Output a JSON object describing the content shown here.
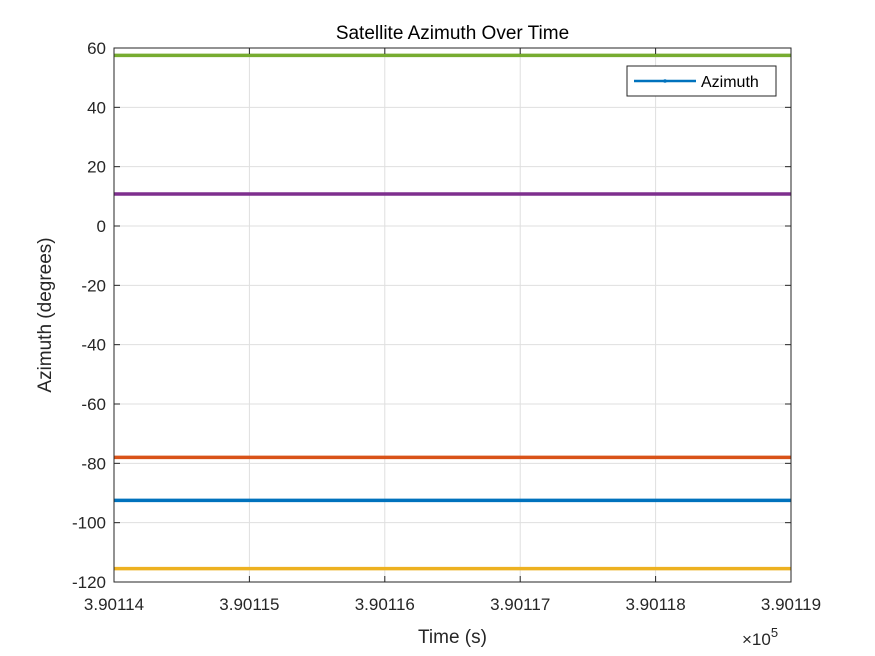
{
  "chart_data": {
    "type": "line",
    "title": "Satellite Azimuth Over Time",
    "xlabel": "Time (s)",
    "ylabel": "Azimuth (degrees)",
    "x_exponent_label": "×10",
    "x_exponent_power": "5",
    "xlim": [
      390114,
      390119
    ],
    "ylim": [
      -120,
      60
    ],
    "x_ticks": [
      390114,
      390115,
      390116,
      390117,
      390118,
      390119
    ],
    "x_tick_labels": [
      "3.90114",
      "3.90115",
      "3.90116",
      "3.90117",
      "3.90118",
      "3.90119"
    ],
    "y_ticks": [
      -120,
      -100,
      -80,
      -60,
      -40,
      -20,
      0,
      20,
      40,
      60
    ],
    "y_tick_labels": [
      "-120",
      "-100",
      "-80",
      "-60",
      "-40",
      "-20",
      "0",
      "20",
      "40",
      "60"
    ],
    "grid": true,
    "legend": {
      "entries": [
        "Azimuth"
      ],
      "placement": "top-right"
    },
    "series": [
      {
        "name": "Azimuth",
        "color": "#0072BD",
        "x": [
          390114,
          390119
        ],
        "y": [
          -92.5,
          -92.5
        ]
      },
      {
        "color": "#D95319",
        "x": [
          390114,
          390119
        ],
        "y": [
          -78.0,
          -78.0
        ]
      },
      {
        "color": "#EDB120",
        "x": [
          390114,
          390119
        ],
        "y": [
          -115.5,
          -115.5
        ]
      },
      {
        "color": "#7E2F8E",
        "x": [
          390114,
          390119
        ],
        "y": [
          10.8,
          10.8
        ]
      },
      {
        "color": "#77AC30",
        "x": [
          390114,
          390119
        ],
        "y": [
          57.5,
          57.5
        ]
      }
    ]
  }
}
